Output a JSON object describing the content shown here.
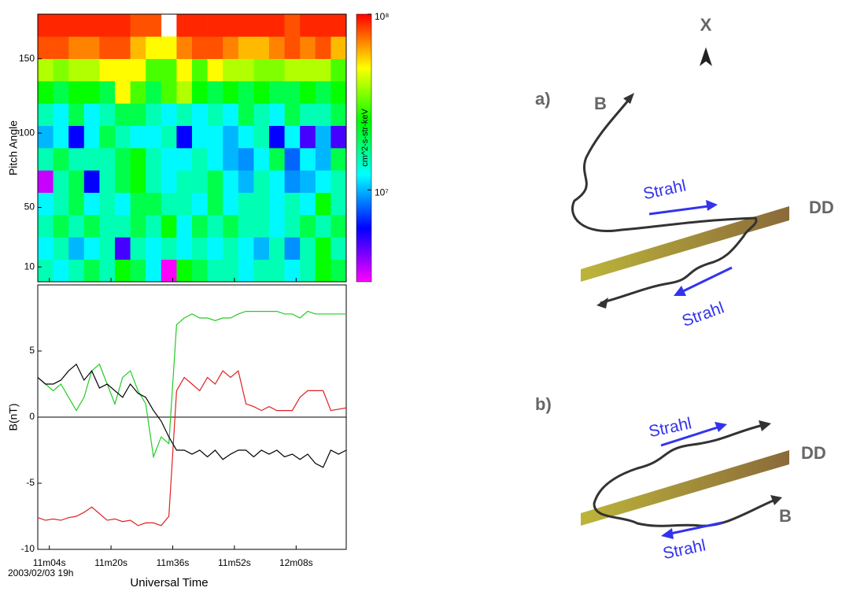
{
  "chart_data": [
    {
      "type": "heatmap",
      "y_label": "Pitch Angle",
      "colorbar_label": "cm^2-s-str-keV",
      "xlim": [
        661,
        741
      ],
      "ylim": [
        0,
        180
      ],
      "yticks": [
        10,
        50,
        100,
        150
      ],
      "xbins": [
        661,
        665,
        669,
        673,
        677,
        681,
        685,
        689,
        693,
        697,
        701,
        705,
        709,
        713,
        717,
        721,
        725,
        729,
        733,
        737,
        741
      ],
      "ybins": [
        0,
        15,
        30,
        45,
        60,
        75,
        90,
        105,
        120,
        135,
        150,
        165,
        180
      ],
      "color_scale": "log",
      "zlim": [
        3000000,
        100000000
      ],
      "zticks": [
        {
          "value": 10000000,
          "label": "10⁷"
        },
        {
          "value": 100000000,
          "label": "10⁸"
        }
      ],
      "z": [
        [
          15000000.0,
          12000000.0,
          15000000.0,
          20000000.0,
          15000000.0,
          25000000.0,
          20000000.0,
          12000000.0,
          3000000.0,
          25000000.0,
          20000000.0,
          15000000.0,
          15000000.0,
          12000000.0,
          15000000.0,
          15000000.0,
          12000000.0,
          15000000.0,
          25000000.0,
          20000000.0
        ],
        [
          12000000.0,
          15000000.0,
          10000000.0,
          12000000.0,
          15000000.0,
          5000000.0,
          15000000.0,
          12000000.0,
          15000000.0,
          12000000.0,
          15000000.0,
          12000000.0,
          15000000.0,
          12000000.0,
          10000000.0,
          15000000.0,
          9000000.0,
          15000000.0,
          25000000.0,
          15000000.0
        ],
        [
          15000000.0,
          20000000.0,
          15000000.0,
          20000000.0,
          15000000.0,
          15000000.0,
          20000000.0,
          15000000.0,
          25000000.0,
          12000000.0,
          20000000.0,
          15000000.0,
          20000000.0,
          15000000.0,
          15000000.0,
          12000000.0,
          15000000.0,
          20000000.0,
          15000000.0,
          20000000.0
        ],
        [
          12000000.0,
          15000000.0,
          20000000.0,
          12000000.0,
          15000000.0,
          12000000.0,
          20000000.0,
          20000000.0,
          15000000.0,
          15000000.0,
          12000000.0,
          20000000.0,
          12000000.0,
          15000000.0,
          15000000.0,
          12000000.0,
          15000000.0,
          12000000.0,
          25000000.0,
          15000000.0
        ],
        [
          3500000.0,
          15000000.0,
          20000000.0,
          6000000.0,
          15000000.0,
          20000000.0,
          25000000.0,
          15000000.0,
          12000000.0,
          15000000.0,
          15000000.0,
          20000000.0,
          12000000.0,
          10000000.0,
          15000000.0,
          12000000.0,
          9000000.0,
          10000000.0,
          12000000.0,
          15000000.0
        ],
        [
          15000000.0,
          20000000.0,
          15000000.0,
          15000000.0,
          15000000.0,
          20000000.0,
          25000000.0,
          15000000.0,
          12000000.0,
          12000000.0,
          15000000.0,
          12000000.0,
          10000000.0,
          9000000.0,
          12000000.0,
          20000000.0,
          8000000.0,
          12000000.0,
          10000000.0,
          20000000.0
        ],
        [
          10000000.0,
          12000000.0,
          6000000.0,
          12000000.0,
          20000000.0,
          15000000.0,
          12000000.0,
          12000000.0,
          15000000.0,
          6000000.0,
          12000000.0,
          12000000.0,
          10000000.0,
          12000000.0,
          15000000.0,
          6000000.0,
          12000000.0,
          5000000.0,
          10000000.0,
          5000000.0
        ],
        [
          15000000.0,
          12000000.0,
          20000000.0,
          12000000.0,
          15000000.0,
          20000000.0,
          20000000.0,
          15000000.0,
          12000000.0,
          15000000.0,
          12000000.0,
          15000000.0,
          12000000.0,
          20000000.0,
          15000000.0,
          12000000.0,
          20000000.0,
          15000000.0,
          15000000.0,
          20000000.0
        ],
        [
          25000000.0,
          20000000.0,
          25000000.0,
          25000000.0,
          20000000.0,
          50000000.0,
          30000000.0,
          20000000.0,
          30000000.0,
          40000000.0,
          25000000.0,
          20000000.0,
          25000000.0,
          20000000.0,
          25000000.0,
          20000000.0,
          20000000.0,
          25000000.0,
          20000000.0,
          25000000.0
        ],
        [
          40000000.0,
          35000000.0,
          40000000.0,
          40000000.0,
          50000000.0,
          50000000.0,
          50000000.0,
          30000000.0,
          30000000.0,
          50000000.0,
          30000000.0,
          50000000.0,
          40000000.0,
          40000000.0,
          35000000.0,
          35000000.0,
          40000000.0,
          40000000.0,
          40000000.0,
          30000000.0
        ],
        [
          80000000.0,
          80000000.0,
          70000000.0,
          70000000.0,
          80000000.0,
          80000000.0,
          60000000.0,
          50000000.0,
          50000000.0,
          70000000.0,
          80000000.0,
          80000000.0,
          70000000.0,
          60000000.0,
          60000000.0,
          70000000.0,
          80000000.0,
          70000000.0,
          80000000.0,
          60000000.0
        ],
        [
          90000000.0,
          90000000.0,
          90000000.0,
          90000000.0,
          90000000.0,
          90000000.0,
          80000000.0,
          80000000.0,
          null,
          90000000.0,
          90000000.0,
          90000000.0,
          90000000.0,
          90000000.0,
          90000000.0,
          90000000.0,
          80000000.0,
          90000000.0,
          90000000.0,
          90000000.0
        ]
      ]
    },
    {
      "type": "line",
      "y_label": "B(nT)",
      "x_label": "Universal Time",
      "date_label": "2003/02/03 19h",
      "xlim": [
        661,
        741
      ],
      "ylim": [
        -10,
        10
      ],
      "yticks": [
        -10,
        -5,
        0,
        5
      ],
      "reference_lines": [
        0
      ],
      "xticks": [
        {
          "value": 664,
          "label": "11m04s"
        },
        {
          "value": 680,
          "label": "11m20s"
        },
        {
          "value": 696,
          "label": "11m36s"
        },
        {
          "value": 712,
          "label": "11m52s"
        },
        {
          "value": 728,
          "label": "12m08s"
        }
      ],
      "x": [
        661,
        663,
        665,
        667,
        669,
        671,
        673,
        675,
        677,
        679,
        681,
        683,
        685,
        687,
        689,
        691,
        693,
        695,
        697,
        699,
        701,
        703,
        705,
        707,
        709,
        711,
        713,
        715,
        717,
        719,
        721,
        723,
        725,
        727,
        729,
        731,
        733,
        735,
        737,
        739,
        741
      ],
      "series": [
        {
          "color": "#22cc22",
          "values": [
            3,
            2.5,
            2,
            2.5,
            1.5,
            0.5,
            1.5,
            3.5,
            4,
            2.5,
            1,
            3,
            3.5,
            2,
            1,
            -3,
            -1.5,
            -2,
            7,
            7.5,
            7.8,
            7.5,
            7.5,
            7.3,
            7.5,
            7.5,
            7.8,
            8,
            8,
            8,
            8,
            8,
            7.8,
            7.8,
            7.5,
            8,
            7.8,
            7.8,
            7.8,
            7.8,
            7.8
          ]
        },
        {
          "color": "#e02020",
          "values": [
            -7.6,
            -7.8,
            -7.7,
            -7.8,
            -7.6,
            -7.5,
            -7.2,
            -6.8,
            -7.3,
            -7.8,
            -7.7,
            -7.9,
            -7.8,
            -8.2,
            -8,
            -8,
            -8.2,
            -7.5,
            2,
            3,
            2.5,
            2,
            3,
            2.5,
            3.5,
            3,
            3.5,
            1,
            0.8,
            0.5,
            0.8,
            0.5,
            0.5,
            0.5,
            1.5,
            2,
            2,
            2,
            0.5,
            0.6,
            0.7
          ]
        },
        {
          "color": "#000000",
          "values": [
            3,
            2.5,
            2.5,
            2.8,
            3.5,
            4,
            2.8,
            3.5,
            2.2,
            2.5,
            2,
            1.5,
            2.5,
            1.8,
            1.5,
            0.5,
            -0.3,
            -1.5,
            -2.5,
            -2.5,
            -2.8,
            -2.5,
            -3,
            -2.5,
            -3.2,
            -2.8,
            -2.5,
            -2.5,
            -3,
            -2.5,
            -2.8,
            -2.5,
            -3,
            -2.8,
            -3.2,
            -2.8,
            -3.5,
            -3.8,
            -2.5,
            -2.8,
            -2.5
          ]
        }
      ]
    }
  ],
  "diagram": {
    "axis_label": "X",
    "panels": [
      {
        "label": "a)",
        "field_label": "B",
        "strahl_labels": [
          "Strahl",
          "Strahl"
        ],
        "boundary_label": "DD"
      },
      {
        "label": "b)",
        "field_label": "B",
        "strahl_labels": [
          "Strahl",
          "Strahl"
        ],
        "boundary_label": "DD"
      }
    ]
  }
}
